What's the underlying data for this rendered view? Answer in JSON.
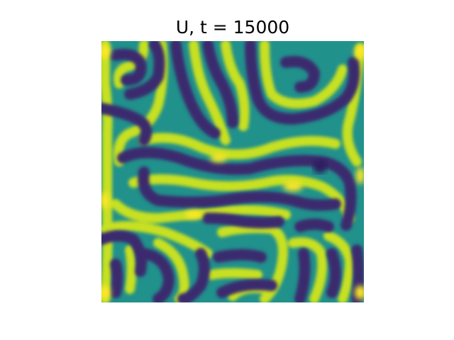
{
  "figure": {
    "title": "U, t = 15000"
  },
  "field": {
    "colormap": "viridis",
    "colors": {
      "trough": "#3b2a6e",
      "mid": "#21918c",
      "crest": "#c7e020",
      "peak": "#fde725"
    }
  }
}
